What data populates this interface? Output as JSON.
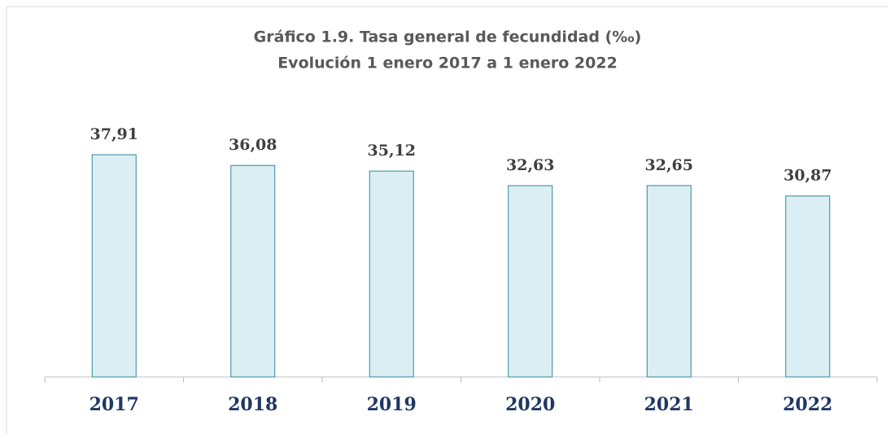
{
  "chart_data": {
    "type": "bar",
    "title": "Gráfico 1.9. Tasa general de fecundidad (‰)",
    "subtitle": "Evolución 1 enero 2017 a 1 enero 2022",
    "categories": [
      "2017",
      "2018",
      "2019",
      "2020",
      "2021",
      "2022"
    ],
    "values": [
      37.91,
      36.08,
      35.12,
      32.63,
      32.65,
      30.87
    ],
    "value_labels": [
      "37,91",
      "36,08",
      "35,12",
      "32,63",
      "32,65",
      "30,87"
    ],
    "color": "#dbeef4",
    "edge_color": "#31859c"
  }
}
